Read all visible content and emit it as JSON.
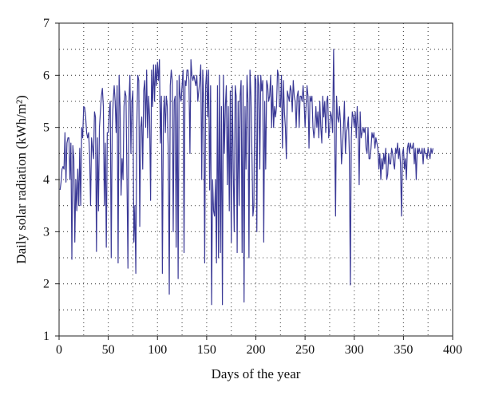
{
  "chart_data": {
    "type": "line",
    "xlabel": "Days of the year",
    "ylabel": "Daily solar radiation (kWh/m²)",
    "xlim": [
      0,
      400
    ],
    "ylim": [
      1,
      7
    ],
    "xticks": [
      0,
      50,
      100,
      150,
      200,
      250,
      300,
      350,
      400
    ],
    "yticks": [
      1,
      2,
      3,
      4,
      5,
      6,
      7
    ],
    "grid": "dotted",
    "line_color": "#3b3a96",
    "series": [
      {
        "values": [
          3.8,
          3.95,
          4.2,
          4.25,
          4.2,
          4.9,
          3.95,
          4.7,
          4.8,
          4.8,
          4.0,
          4.7,
          2.47,
          4.65,
          4.4,
          2.8,
          4.0,
          3.4,
          4.2,
          3.5,
          4.6,
          3.5,
          5.0,
          4.8,
          5.4,
          5.38,
          5.2,
          4.9,
          4.8,
          4.9,
          4.5,
          3.5,
          4.8,
          4.6,
          4.4,
          5.3,
          5.2,
          2.62,
          4.8,
          3.4,
          5.0,
          5.3,
          5.6,
          5.75,
          5.4,
          3.5,
          4.7,
          2.7,
          4.9,
          4.9,
          5.3,
          5.5,
          2.5,
          5.0,
          5.5,
          5.8,
          5.5,
          4.9,
          5.8,
          2.4,
          6.0,
          5.4,
          3.7,
          4.4,
          4.0,
          5.4,
          5.7,
          5.6,
          4.0,
          2.3,
          5.5,
          6.0,
          4.5,
          5.5,
          5.7,
          2.8,
          3.5,
          2.2,
          5.0,
          6.0,
          5.9,
          3.1,
          5.0,
          5.2,
          4.2,
          5.7,
          5.9,
          5.0,
          6.1,
          4.8,
          5.6,
          5.2,
          3.6,
          6.1,
          5.4,
          6.2,
          5.5,
          6.2,
          5.8,
          6.25,
          5.9,
          6.3,
          4.7,
          5.6,
          2.2,
          5.2,
          5.6,
          4.9,
          5.6,
          5.4,
          4.5,
          1.8,
          5.8,
          6.1,
          5.9,
          3.0,
          5.5,
          5.6,
          2.7,
          5.9,
          2.1,
          6.0,
          5.6,
          5.5,
          5.8,
          6.1,
          2.6,
          5.9,
          5.8,
          6.1,
          6.1,
          5.9,
          4.5,
          6.3,
          6.0,
          5.9,
          6.0,
          5.9,
          5.8,
          6.0,
          5.5,
          5.7,
          5.9,
          6.2,
          4.0,
          6.1,
          5.5,
          2.4,
          5.8,
          6.1,
          5.2,
          6.1,
          3.8,
          5.8,
          1.6,
          4.0,
          3.4,
          3.3,
          4.0,
          2.4,
          5.8,
          2.5,
          6.0,
          2.6,
          5.4,
          1.6,
          6.0,
          4.5,
          5.4,
          5.8,
          3.9,
          5.4,
          3.4,
          5.7,
          2.8,
          5.8,
          4.2,
          3.0,
          5.8,
          5.6,
          2.6,
          5.5,
          3.5,
          5.6,
          5.9,
          2.6,
          5.8,
          1.65,
          5.4,
          4.2,
          6.0,
          5.5,
          2.5,
          6.1,
          5.6,
          4.5,
          3.3,
          3.5,
          6.0,
          5.9,
          3.0,
          6.0,
          5.8,
          4.2,
          6.0,
          5.7,
          5.9,
          2.8,
          5.5,
          4.2,
          5.9,
          5.8,
          5.5,
          5.6,
          6.0,
          5.0,
          5.8,
          5.0,
          5.4,
          5.2,
          5.4,
          6.1,
          6.0,
          5.4,
          5.4,
          6.0,
          4.6,
          5.9,
          5.3,
          5.0,
          4.4,
          5.7,
          5.6,
          5.5,
          5.8,
          5.7,
          5.3,
          5.9,
          5.6,
          5.5,
          5.0,
          5.6,
          5.7,
          5.0,
          5.6,
          5.6,
          5.5,
          5.8,
          5.5,
          5.0,
          5.4,
          5.8,
          5.6,
          4.6,
          5.6,
          5.5,
          5.6,
          5.0,
          4.8,
          5.0,
          5.4,
          5.0,
          5.3,
          4.8,
          5.5,
          5.0,
          4.7,
          5.6,
          5.2,
          5.5,
          4.9,
          5.5,
          5.6,
          4.8,
          5.0,
          5.3,
          5.2,
          4.9,
          6.5,
          5.0,
          3.3,
          5.6,
          5.2,
          5.1,
          5.4,
          5.1,
          4.3,
          4.6,
          5.0,
          5.5,
          4.5,
          4.9,
          5.0,
          5.2,
          4.5,
          1.98,
          4.8,
          5.3,
          5.2,
          5.0,
          5.3,
          4.8,
          5.4,
          5.0,
          3.9,
          5.3,
          4.8,
          4.9,
          5.0,
          4.9,
          5.0,
          4.6,
          4.5,
          5.0,
          4.4,
          4.4,
          4.6,
          4.9,
          4.8,
          4.9,
          4.6,
          4.8,
          4.7,
          4.6,
          4.2,
          4.5,
          4.0,
          4.4,
          4.2,
          4.5,
          4.3,
          4.6,
          4.0,
          4.1,
          4.5,
          4.3,
          4.3,
          4.6,
          4.5,
          4.3,
          4.2,
          4.6,
          4.5,
          4.7,
          4.4,
          4.6,
          4.3,
          3.3,
          4.5,
          4.6,
          4.2,
          4.4,
          4.0,
          4.6,
          4.7,
          4.5,
          4.7,
          4.6,
          4.6,
          4.7,
          4.3,
          4.6,
          4.0,
          4.6,
          4.5,
          4.6,
          4.5,
          4.5,
          4.6,
          4.3,
          4.6,
          4.5,
          4.5,
          4.4,
          4.6,
          4.5,
          4.4,
          4.6,
          4.5,
          4.6
        ]
      }
    ]
  }
}
